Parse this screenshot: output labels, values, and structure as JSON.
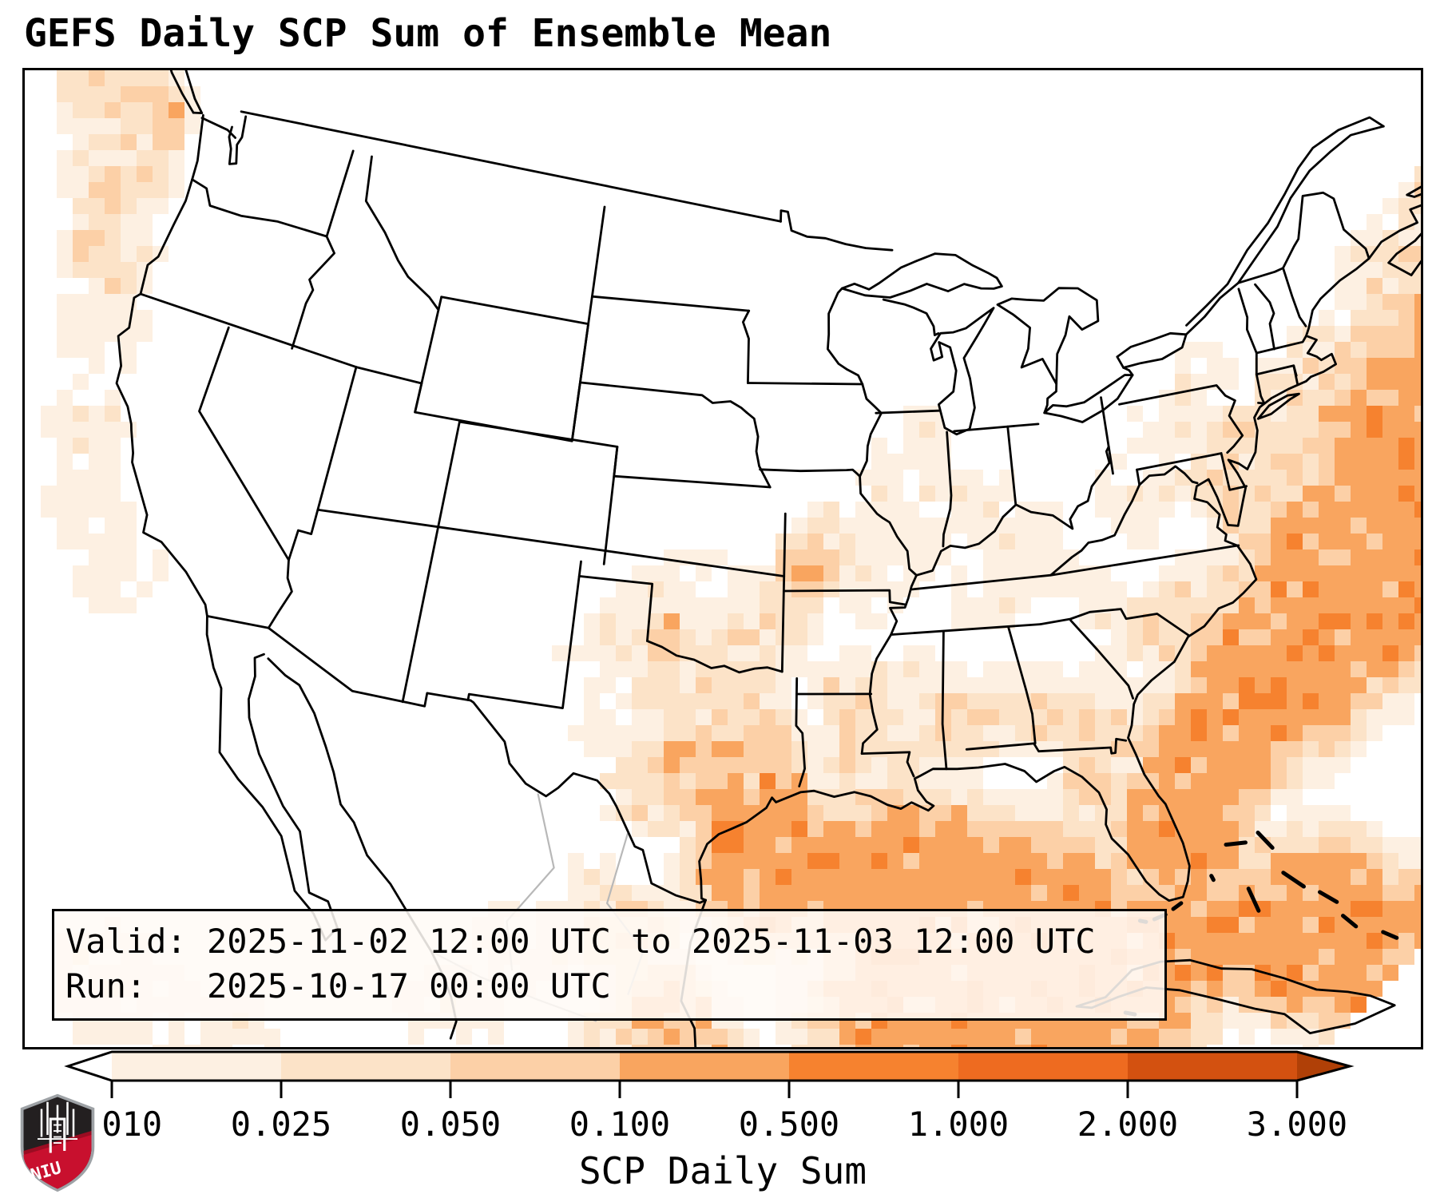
{
  "title": "GEFS Daily SCP Sum of Ensemble Mean",
  "info_box": {
    "valid_line": "Valid: 2025-11-02 12:00 UTC to 2025-11-03 12:00 UTC",
    "run_line": "Run:   2025-10-17 00:00 UTC"
  },
  "colorbar": {
    "label": "SCP Daily Sum",
    "tick_labels": [
      "0.010",
      "0.025",
      "0.050",
      "0.100",
      "0.500",
      "1.000",
      "2.000",
      "3.000"
    ],
    "bin_colors": [
      "#fdf0e2",
      "#fce3c8",
      "#fcd0a7",
      "#f9a55f",
      "#f6822f",
      "#ee6b20",
      "#d35110"
    ],
    "under_color": "#ffffff",
    "over_color": "#b04007",
    "outline_color": "#000000"
  },
  "map": {
    "background": "#ffffff",
    "border_color": "#000000",
    "level_colors": [
      "#fdf0e2",
      "#fce3c8",
      "#fcd0a7",
      "#f9a55f",
      "#f6822f"
    ],
    "shading_blobs": [
      [
        -129,
        48.5,
        3.4,
        2
      ],
      [
        -127.3,
        45.6,
        2.7,
        2
      ],
      [
        -126.2,
        47.6,
        1.4,
        3
      ],
      [
        -126.2,
        43,
        2.3,
        2
      ],
      [
        -125.2,
        40.5,
        2.2,
        1
      ],
      [
        -124.3,
        37.2,
        2.1,
        1
      ],
      [
        -122.9,
        34.6,
        2.1,
        1
      ],
      [
        -120.9,
        32.8,
        2,
        1
      ],
      [
        -116.5,
        19.5,
        2.6,
        1
      ],
      [
        -112.8,
        18.8,
        2.4,
        1
      ],
      [
        -66.5,
        37.5,
        7,
        4
      ],
      [
        -71.5,
        34.5,
        5.5,
        4
      ],
      [
        -75.5,
        32,
        4.2,
        4
      ],
      [
        -78.3,
        30,
        3.4,
        4
      ],
      [
        -80,
        27.6,
        3,
        4
      ],
      [
        -64,
        41,
        4,
        4
      ],
      [
        -69.5,
        41.3,
        2.4,
        2
      ],
      [
        -66,
        43.3,
        3,
        2
      ],
      [
        -62.5,
        44.8,
        3.2,
        2
      ],
      [
        -73,
        39.5,
        2.2,
        2
      ],
      [
        -75.2,
        37.8,
        1.9,
        2
      ],
      [
        -70.3,
        42.2,
        1.5,
        2
      ],
      [
        -76.3,
        38.9,
        1.6,
        2
      ],
      [
        -74.9,
        40.1,
        1.4,
        2
      ],
      [
        -72.4,
        41.1,
        1.6,
        2
      ],
      [
        -94.5,
        27,
        3.6,
        4
      ],
      [
        -90,
        26.3,
        4.6,
        4
      ],
      [
        -86,
        25,
        4.6,
        4
      ],
      [
        -89,
        22.3,
        5,
        4
      ],
      [
        -84,
        22.3,
        4.6,
        4
      ],
      [
        -81,
        23.8,
        3.6,
        4
      ],
      [
        -76.5,
        23.5,
        4.2,
        4
      ],
      [
        -72.8,
        21.3,
        4.6,
        4
      ],
      [
        -69.8,
        20.3,
        4.2,
        4
      ],
      [
        -96.35,
        27.95,
        1.05,
        5
      ],
      [
        -74.2,
        19.9,
        1.3,
        5
      ],
      [
        -96.2,
        28.9,
        1.7,
        4
      ],
      [
        -94.6,
        29.4,
        1.6,
        4
      ],
      [
        -97.5,
        30.3,
        2.3,
        3
      ],
      [
        -95.6,
        31,
        2.1,
        3
      ],
      [
        -96.6,
        32.6,
        2.1,
        2
      ],
      [
        -99,
        29.8,
        2.3,
        2
      ],
      [
        -98.6,
        32.9,
        2.1,
        2
      ],
      [
        -100.6,
        31.4,
        2,
        1
      ],
      [
        -101.6,
        34.1,
        2,
        1
      ],
      [
        -100.2,
        35.6,
        1.9,
        1
      ],
      [
        -99.3,
        34.6,
        1.3,
        3
      ],
      [
        -96.6,
        34.3,
        1.8,
        2
      ],
      [
        -95,
        35.1,
        1.8,
        2
      ],
      [
        -94.4,
        36.4,
        1.6,
        2
      ],
      [
        -93.6,
        37.2,
        1.7,
        3
      ],
      [
        -92.9,
        38.2,
        1.5,
        2
      ],
      [
        -91.2,
        36.6,
        1.8,
        1
      ],
      [
        -90.6,
        38.6,
        1.6,
        1
      ],
      [
        -89.2,
        37.6,
        1.6,
        1
      ],
      [
        -98.2,
        36.6,
        1.8,
        1
      ],
      [
        -96.8,
        36.2,
        1.6,
        1
      ],
      [
        -89.6,
        40.2,
        2.1,
        1
      ],
      [
        -87.6,
        39.6,
        2,
        1
      ],
      [
        -85.6,
        38.6,
        2,
        1
      ],
      [
        -84.1,
        38.2,
        1.6,
        1
      ],
      [
        -88.2,
        41.6,
        1.6,
        1
      ],
      [
        -86.2,
        36.3,
        2.1,
        1
      ],
      [
        -84,
        36.6,
        1.6,
        1
      ],
      [
        -82.1,
        35.6,
        1.6,
        1
      ],
      [
        -91.6,
        32.6,
        2.1,
        2
      ],
      [
        -89.6,
        33.1,
        2,
        1
      ],
      [
        -87.6,
        32.1,
        2.1,
        2
      ],
      [
        -85.6,
        32.6,
        2,
        1
      ],
      [
        -84.1,
        31.9,
        1.9,
        2
      ],
      [
        -82.6,
        31.1,
        1.8,
        2
      ],
      [
        -81.6,
        33.1,
        1.6,
        1
      ],
      [
        -79.6,
        34.4,
        1.9,
        2
      ],
      [
        -77.6,
        35.4,
        1.6,
        2
      ],
      [
        -91.6,
        30.9,
        1.5,
        2
      ],
      [
        -90.1,
        30.9,
        1.3,
        2
      ],
      [
        -81.7,
        28.4,
        1.5,
        2
      ],
      [
        -82,
        26.9,
        1.3,
        3
      ],
      [
        -80.9,
        25.9,
        1.1,
        3
      ],
      [
        -83.2,
        29.3,
        1.3,
        3
      ],
      [
        -99.9,
        24.6,
        2.1,
        2
      ],
      [
        -98.3,
        22.3,
        2.1,
        3
      ],
      [
        -97.6,
        20.9,
        2.1,
        3
      ],
      [
        -101.1,
        25.9,
        1.7,
        1
      ],
      [
        -103.1,
        24.1,
        2.1,
        1
      ],
      [
        -99.1,
        20.9,
        2.1,
        2
      ],
      [
        -105.3,
        21.3,
        2.1,
        1
      ],
      [
        -77.2,
        40.7,
        2.3,
        1
      ],
      [
        -79.6,
        38.9,
        2.1,
        1
      ],
      [
        -75.8,
        42.3,
        1.8,
        1
      ]
    ]
  },
  "logo": {
    "text": "NIU",
    "shield_black": "#231f20",
    "shield_red": "#c8102e",
    "shield_red_dark": "#9b0c22",
    "outline": "#9ea2a6"
  }
}
